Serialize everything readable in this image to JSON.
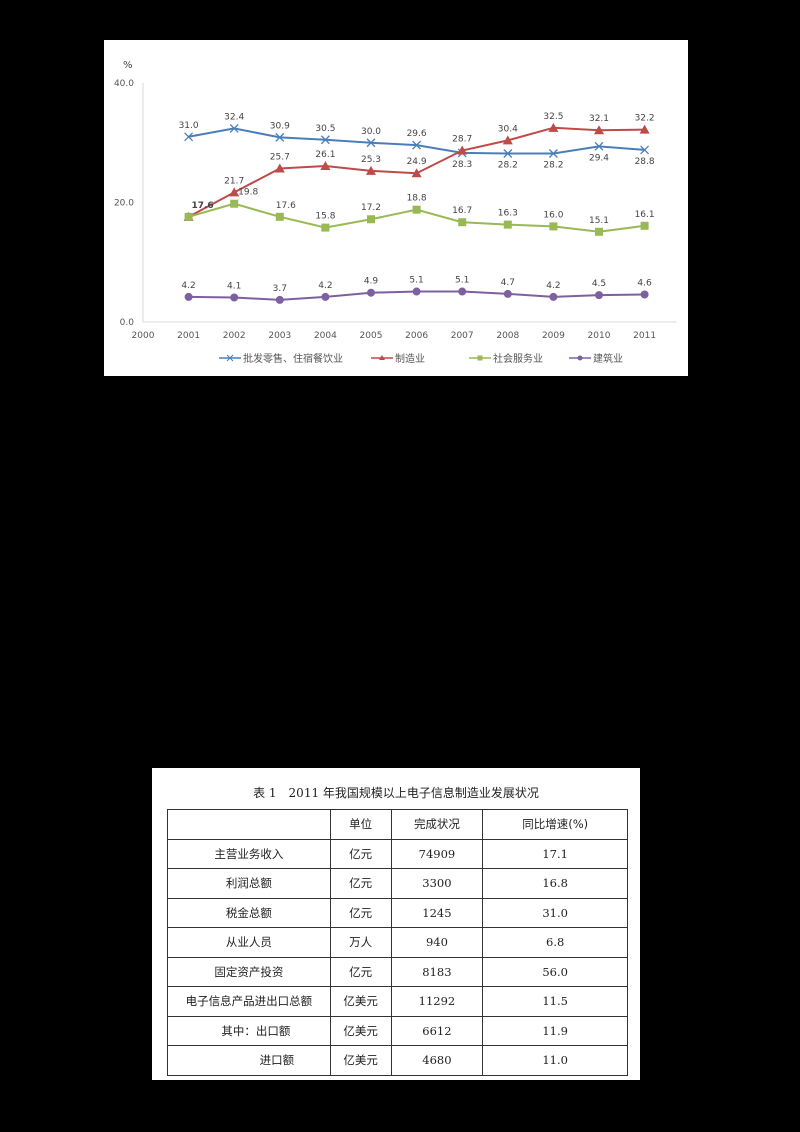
{
  "chart_data": {
    "type": "line",
    "title": "",
    "ylabel": "%",
    "xlabel": "",
    "ylim": [
      0,
      40
    ],
    "yticks": [
      "0.0",
      "20.0",
      "40.0"
    ],
    "x": [
      "2000",
      "2001",
      "2002",
      "2003",
      "2004",
      "2005",
      "2006",
      "2007",
      "2008",
      "2009",
      "2010",
      "2011"
    ],
    "grid": false,
    "legend_position": "bottom",
    "series": [
      {
        "name": "批发零售、住宿餐饮业",
        "color": "#4a7ebb",
        "marker": "x",
        "x": [
          "2001",
          "2002",
          "2003",
          "2004",
          "2005",
          "2006",
          "2007",
          "2008",
          "2009",
          "2010",
          "2011"
        ],
        "values": [
          31.0,
          32.4,
          30.9,
          30.5,
          30.0,
          29.6,
          28.3,
          28.2,
          28.2,
          29.4,
          28.8
        ]
      },
      {
        "name": "制造业",
        "color": "#be4b48",
        "marker": "triangle",
        "x": [
          "2001",
          "2002",
          "2003",
          "2004",
          "2005",
          "2006",
          "2007",
          "2008",
          "2009",
          "2010",
          "2011"
        ],
        "values": [
          17.6,
          21.7,
          25.7,
          26.1,
          25.3,
          24.9,
          28.7,
          30.4,
          32.5,
          32.1,
          32.2
        ]
      },
      {
        "name": "社会服务业",
        "color": "#98b954",
        "marker": "square",
        "x": [
          "2001",
          "2002",
          "2003",
          "2004",
          "2005",
          "2006",
          "2007",
          "2008",
          "2009",
          "2010",
          "2011"
        ],
        "values": [
          17.6,
          19.8,
          17.6,
          15.8,
          17.2,
          18.8,
          16.7,
          16.3,
          16.0,
          15.1,
          16.1
        ]
      },
      {
        "name": "建筑业",
        "color": "#7d60a0",
        "marker": "circle",
        "x": [
          "2001",
          "2002",
          "2003",
          "2004",
          "2005",
          "2006",
          "2007",
          "2008",
          "2009",
          "2010",
          "2011"
        ],
        "values": [
          4.2,
          4.1,
          3.7,
          4.2,
          4.9,
          5.1,
          5.1,
          4.7,
          4.2,
          4.5,
          4.6
        ]
      }
    ]
  },
  "chart": {
    "unit_label": "%",
    "y_tick_labels": [
      "40.0",
      "20.0",
      "0.0"
    ],
    "x_tick_labels": [
      "2000",
      "2001",
      "2002",
      "2003",
      "2004",
      "2005",
      "2006",
      "2007",
      "2008",
      "2009",
      "2010",
      "2011"
    ],
    "legend": [
      "批发零售、住宿餐饮业",
      "制造业",
      "社会服务业",
      "建筑业"
    ]
  },
  "table": {
    "caption": "表 1　2011 年我国规模以上电子信息制造业发展状况",
    "headers": [
      "",
      "单位",
      "完成状况",
      "同比增速(%)"
    ],
    "rows": [
      {
        "item": "主营业务收入",
        "unit": "亿元",
        "value": "74909",
        "growth": "17.1"
      },
      {
        "item": "利润总额",
        "unit": "亿元",
        "value": "3300",
        "growth": "16.8"
      },
      {
        "item": "税金总额",
        "unit": "亿元",
        "value": "1245",
        "growth": "31.0"
      },
      {
        "item": "从业人员",
        "unit": "万人",
        "value": "940",
        "growth": "6.8"
      },
      {
        "item": "固定资产投资",
        "unit": "亿元",
        "value": "8183",
        "growth": "56.0"
      },
      {
        "item": "电子信息产品进出口总额",
        "unit": "亿美元",
        "value": "11292",
        "growth": "11.5"
      },
      {
        "item": "其中：出口额",
        "unit": "亿美元",
        "value": "6612",
        "growth": "11.9"
      },
      {
        "item": "进口额",
        "unit": "亿美元",
        "value": "4680",
        "growth": "11.0"
      }
    ]
  }
}
